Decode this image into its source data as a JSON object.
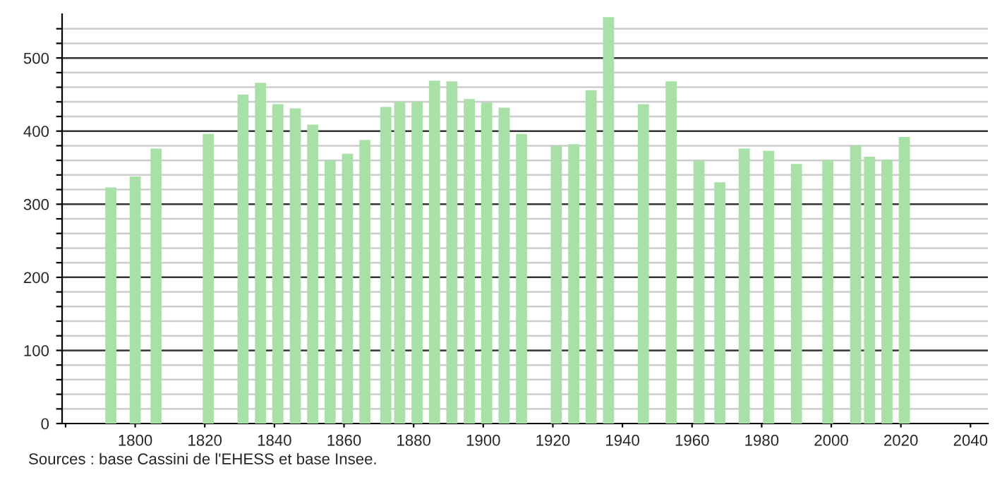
{
  "chart_data": {
    "type": "bar",
    "x": [
      1793,
      1800,
      1806,
      1821,
      1831,
      1836,
      1841,
      1846,
      1851,
      1856,
      1861,
      1866,
      1872,
      1876,
      1881,
      1886,
      1891,
      1896,
      1901,
      1906,
      1911,
      1921,
      1926,
      1931,
      1936,
      1946,
      1954,
      1962,
      1968,
      1975,
      1982,
      1990,
      1999,
      2007,
      2011,
      2016,
      2021
    ],
    "values": [
      323,
      338,
      376,
      396,
      450,
      466,
      437,
      431,
      409,
      360,
      369,
      388,
      433,
      440,
      440,
      469,
      468,
      444,
      439,
      432,
      396,
      380,
      382,
      456,
      556,
      437,
      468,
      360,
      330,
      376,
      373,
      355,
      360,
      380,
      365,
      361,
      392
    ],
    "color": "#a8e0a8",
    "xlim": [
      1779,
      2045
    ],
    "xticks": [
      {
        "value": 1780,
        "label": null
      },
      1800,
      1820,
      1840,
      1860,
      1880,
      1900,
      1920,
      1940,
      1960,
      1980,
      2000,
      2020,
      2040
    ],
    "ylim": [
      0,
      560
    ],
    "yticks": [
      0,
      {
        "value": 20,
        "label": null
      },
      {
        "value": 40,
        "label": null
      },
      {
        "value": 60,
        "label": null
      },
      {
        "value": 80,
        "label": null
      },
      100,
      {
        "value": 120,
        "label": null
      },
      {
        "value": 140,
        "label": null
      },
      {
        "value": 160,
        "label": null
      },
      {
        "value": 180,
        "label": null
      },
      200,
      {
        "value": 220,
        "label": null
      },
      {
        "value": 240,
        "label": null
      },
      {
        "value": 260,
        "label": null
      },
      {
        "value": 280,
        "label": null
      },
      300,
      {
        "value": 320,
        "label": null
      },
      {
        "value": 340,
        "label": null
      },
      {
        "value": 360,
        "label": null
      },
      {
        "value": 380,
        "label": null
      },
      400,
      {
        "value": 420,
        "label": null
      },
      {
        "value": 440,
        "label": null
      },
      {
        "value": 460,
        "label": null
      },
      {
        "value": 480,
        "label": null
      },
      500,
      {
        "value": 520,
        "label": null
      },
      {
        "value": 540,
        "label": null
      }
    ],
    "grid": "y",
    "annotations": [
      "Sources : base Cassini de l'EHESS et base Insee."
    ]
  }
}
